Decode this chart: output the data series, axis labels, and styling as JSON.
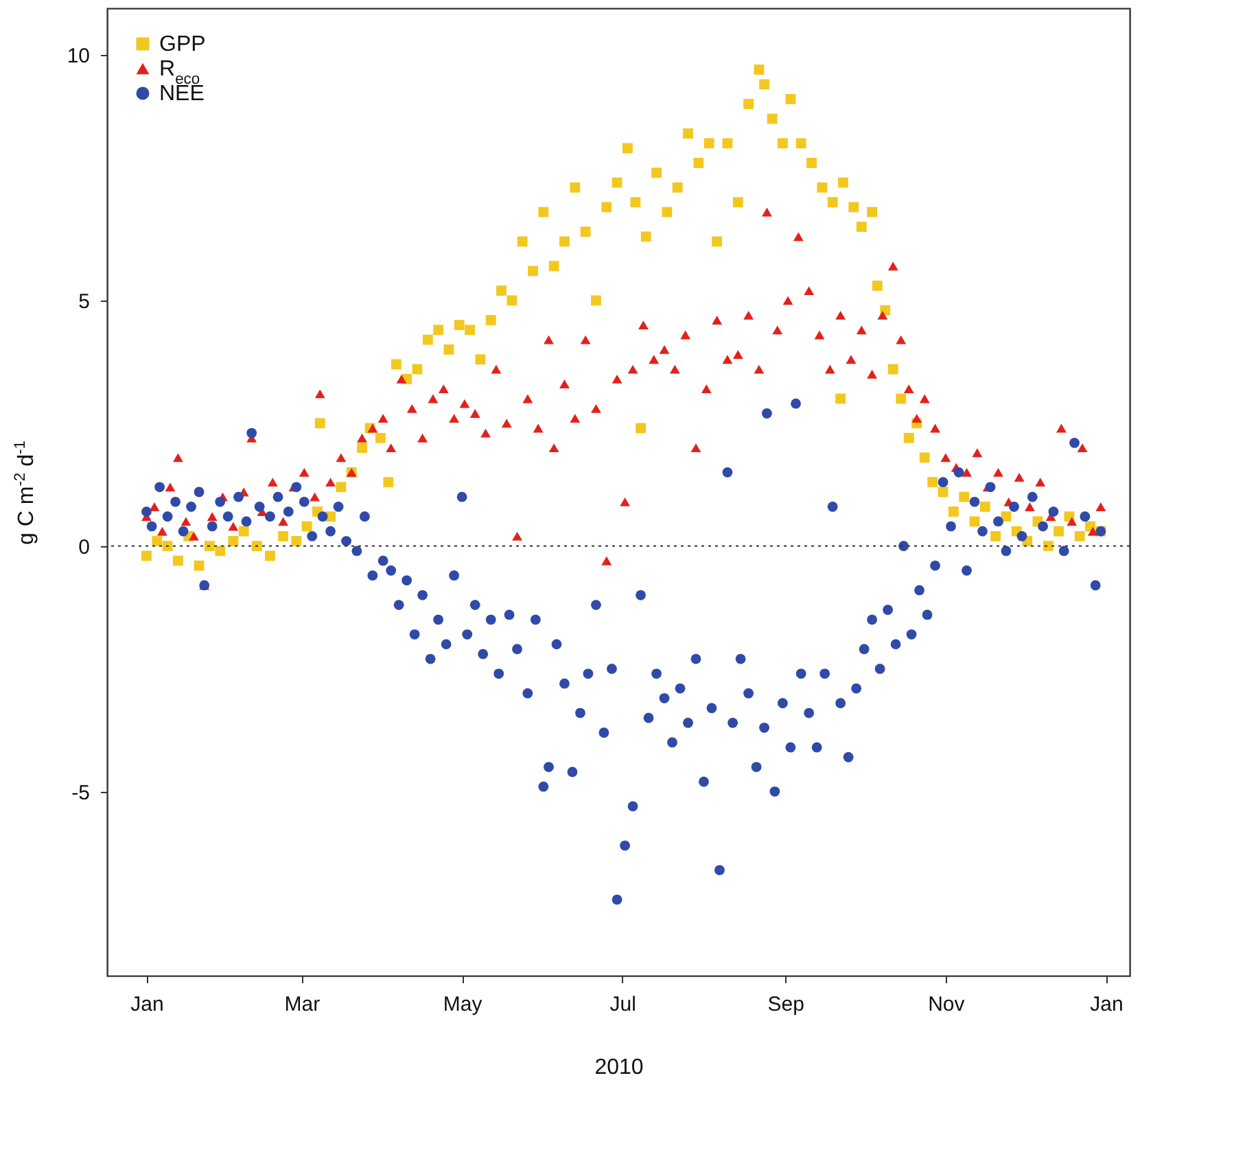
{
  "chart_data": {
    "type": "scatter",
    "xlabel": "2010",
    "ylabel": "g C m$^{-2}$ d$^{-1}$",
    "legend": "top left",
    "grid": false,
    "xlim": [
      "2009-12-17",
      "2011-01-10"
    ],
    "ylim": [
      -8.75,
      10.95
    ],
    "xticks": [
      {
        "value": "2010-01-01",
        "label": "Jan"
      },
      {
        "value": "2010-03-01",
        "label": "Mar"
      },
      {
        "value": "2010-05-01",
        "label": "May"
      },
      {
        "value": "2010-07-01",
        "label": "Jul"
      },
      {
        "value": "2010-09-01",
        "label": "Sep"
      },
      {
        "value": "2010-11-01",
        "label": "Nov"
      },
      {
        "value": "2011-01-01",
        "label": "Jan"
      }
    ],
    "yticks": [
      -5,
      0,
      5,
      10
    ],
    "ref_lines": [
      {
        "axis": "y",
        "value": 0,
        "line_style": "dotted",
        "color": "#333333"
      }
    ],
    "series": [
      {
        "name": "GPP",
        "color": "#f2c81e",
        "marker": "square",
        "x": [
          "2010-01-01",
          "2010-01-05",
          "2010-01-09",
          "2010-01-13",
          "2010-01-17",
          "2010-01-21",
          "2010-01-25",
          "2010-01-29",
          "2010-02-03",
          "2010-02-07",
          "2010-02-12",
          "2010-02-17",
          "2010-02-22",
          "2010-02-27",
          "2010-03-03",
          "2010-03-07",
          "2010-03-08",
          "2010-03-12",
          "2010-03-16",
          "2010-03-20",
          "2010-03-24",
          "2010-03-27",
          "2010-03-31",
          "2010-04-03",
          "2010-04-06",
          "2010-04-10",
          "2010-04-14",
          "2010-04-18",
          "2010-04-22",
          "2010-04-26",
          "2010-04-30",
          "2010-05-04",
          "2010-05-08",
          "2010-05-12",
          "2010-05-16",
          "2010-05-20",
          "2010-05-24",
          "2010-05-28",
          "2010-06-01",
          "2010-06-05",
          "2010-06-09",
          "2010-06-13",
          "2010-06-17",
          "2010-06-21",
          "2010-06-25",
          "2010-06-29",
          "2010-07-03",
          "2010-07-06",
          "2010-07-08",
          "2010-07-10",
          "2010-07-14",
          "2010-07-18",
          "2010-07-22",
          "2010-07-26",
          "2010-07-30",
          "2010-08-03",
          "2010-08-06",
          "2010-08-10",
          "2010-08-14",
          "2010-08-18",
          "2010-08-22",
          "2010-08-24",
          "2010-08-27",
          "2010-08-31",
          "2010-09-03",
          "2010-09-07",
          "2010-09-11",
          "2010-09-15",
          "2010-09-19",
          "2010-09-22",
          "2010-09-23",
          "2010-09-27",
          "2010-09-30",
          "2010-10-04",
          "2010-10-06",
          "2010-10-09",
          "2010-10-12",
          "2010-10-15",
          "2010-10-18",
          "2010-10-21",
          "2010-10-24",
          "2010-10-27",
          "2010-10-31",
          "2010-11-04",
          "2010-11-08",
          "2010-11-12",
          "2010-11-16",
          "2010-11-20",
          "2010-11-24",
          "2010-11-28",
          "2010-12-02",
          "2010-12-06",
          "2010-12-10",
          "2010-12-14",
          "2010-12-18",
          "2010-12-22",
          "2010-12-26",
          "2010-12-30"
        ],
        "values": [
          -0.2,
          0.1,
          0.0,
          -0.3,
          0.2,
          -0.4,
          0.0,
          -0.1,
          0.1,
          0.3,
          0.0,
          -0.2,
          0.2,
          0.1,
          0.4,
          0.7,
          2.5,
          0.6,
          1.2,
          1.5,
          2.0,
          2.4,
          2.2,
          1.3,
          3.7,
          3.4,
          3.6,
          4.2,
          4.4,
          4.0,
          4.5,
          4.4,
          3.8,
          4.6,
          5.2,
          5.0,
          6.2,
          5.6,
          6.8,
          5.7,
          6.2,
          7.3,
          6.4,
          5.0,
          6.9,
          7.4,
          8.1,
          7.0,
          2.4,
          6.3,
          7.6,
          6.8,
          7.3,
          8.4,
          7.8,
          8.2,
          6.2,
          8.2,
          7.0,
          9.0,
          9.7,
          9.4,
          8.7,
          8.2,
          9.1,
          8.2,
          7.8,
          7.3,
          7.0,
          3.0,
          7.4,
          6.9,
          6.5,
          6.8,
          5.3,
          4.8,
          3.6,
          3.0,
          2.2,
          2.5,
          1.8,
          1.3,
          1.1,
          0.7,
          1.0,
          0.5,
          0.8,
          0.2,
          0.6,
          0.3,
          0.1,
          0.5,
          0.0,
          0.3,
          0.6,
          0.2,
          0.4,
          0.3
        ]
      },
      {
        "name": "R$_{eco}$",
        "color": "#e3211c",
        "marker": "triangle",
        "x": [
          "2010-01-01",
          "2010-01-04",
          "2010-01-07",
          "2010-01-10",
          "2010-01-13",
          "2010-01-16",
          "2010-01-19",
          "2010-01-23",
          "2010-01-26",
          "2010-01-30",
          "2010-02-03",
          "2010-02-07",
          "2010-02-10",
          "2010-02-14",
          "2010-02-18",
          "2010-02-22",
          "2010-02-26",
          "2010-03-02",
          "2010-03-06",
          "2010-03-08",
          "2010-03-12",
          "2010-03-16",
          "2010-03-20",
          "2010-03-24",
          "2010-03-28",
          "2010-04-01",
          "2010-04-04",
          "2010-04-08",
          "2010-04-12",
          "2010-04-16",
          "2010-04-20",
          "2010-04-24",
          "2010-04-28",
          "2010-05-02",
          "2010-05-06",
          "2010-05-10",
          "2010-05-14",
          "2010-05-18",
          "2010-05-22",
          "2010-05-26",
          "2010-05-30",
          "2010-06-03",
          "2010-06-05",
          "2010-06-09",
          "2010-06-13",
          "2010-06-17",
          "2010-06-21",
          "2010-06-25",
          "2010-06-29",
          "2010-07-02",
          "2010-07-05",
          "2010-07-09",
          "2010-07-13",
          "2010-07-17",
          "2010-07-21",
          "2010-07-25",
          "2010-07-29",
          "2010-08-02",
          "2010-08-06",
          "2010-08-10",
          "2010-08-14",
          "2010-08-18",
          "2010-08-22",
          "2010-08-25",
          "2010-08-29",
          "2010-09-02",
          "2010-09-06",
          "2010-09-10",
          "2010-09-14",
          "2010-09-18",
          "2010-09-22",
          "2010-09-26",
          "2010-09-30",
          "2010-10-04",
          "2010-10-08",
          "2010-10-12",
          "2010-10-15",
          "2010-10-18",
          "2010-10-21",
          "2010-10-24",
          "2010-10-28",
          "2010-11-01",
          "2010-11-05",
          "2010-11-09",
          "2010-11-13",
          "2010-11-17",
          "2010-11-21",
          "2010-11-25",
          "2010-11-29",
          "2010-12-03",
          "2010-12-07",
          "2010-12-11",
          "2010-12-15",
          "2010-12-19",
          "2010-12-23",
          "2010-12-27",
          "2010-12-30"
        ],
        "values": [
          0.6,
          0.8,
          0.3,
          1.2,
          1.8,
          0.5,
          0.2,
          -0.8,
          0.6,
          1.0,
          0.4,
          1.1,
          2.2,
          0.7,
          1.3,
          0.5,
          1.2,
          1.5,
          1.0,
          3.1,
          1.3,
          1.8,
          1.5,
          2.2,
          2.4,
          2.6,
          2.0,
          3.4,
          2.8,
          2.2,
          3.0,
          3.2,
          2.6,
          2.9,
          2.7,
          2.3,
          3.6,
          2.5,
          0.2,
          3.0,
          2.4,
          4.2,
          2.0,
          3.3,
          2.6,
          4.2,
          2.8,
          -0.3,
          3.4,
          0.9,
          3.6,
          4.5,
          3.8,
          4.0,
          3.6,
          4.3,
          2.0,
          3.2,
          4.6,
          3.8,
          3.9,
          4.7,
          3.6,
          6.8,
          4.4,
          5.0,
          6.3,
          5.2,
          4.3,
          3.6,
          4.7,
          3.8,
          4.4,
          3.5,
          4.7,
          5.7,
          4.2,
          3.2,
          2.6,
          3.0,
          2.4,
          1.8,
          1.6,
          1.5,
          1.9,
          1.2,
          1.5,
          0.9,
          1.4,
          0.8,
          1.3,
          0.6,
          2.4,
          0.5,
          2.0,
          0.3,
          0.8
        ]
      },
      {
        "name": "NEE",
        "color": "#2f4aa8",
        "marker": "circle",
        "x": [
          "2010-01-01",
          "2010-01-03",
          "2010-01-06",
          "2010-01-09",
          "2010-01-12",
          "2010-01-15",
          "2010-01-18",
          "2010-01-21",
          "2010-01-23",
          "2010-01-26",
          "2010-01-29",
          "2010-02-01",
          "2010-02-05",
          "2010-02-08",
          "2010-02-10",
          "2010-02-13",
          "2010-02-17",
          "2010-02-20",
          "2010-02-24",
          "2010-02-27",
          "2010-03-02",
          "2010-03-05",
          "2010-03-09",
          "2010-03-12",
          "2010-03-15",
          "2010-03-18",
          "2010-03-22",
          "2010-03-25",
          "2010-03-28",
          "2010-04-01",
          "2010-04-04",
          "2010-04-07",
          "2010-04-10",
          "2010-04-13",
          "2010-04-16",
          "2010-04-19",
          "2010-04-22",
          "2010-04-25",
          "2010-04-28",
          "2010-05-01",
          "2010-05-03",
          "2010-05-06",
          "2010-05-09",
          "2010-05-12",
          "2010-05-15",
          "2010-05-19",
          "2010-05-22",
          "2010-05-26",
          "2010-05-29",
          "2010-06-01",
          "2010-06-03",
          "2010-06-06",
          "2010-06-09",
          "2010-06-12",
          "2010-06-15",
          "2010-06-18",
          "2010-06-21",
          "2010-06-24",
          "2010-06-27",
          "2010-06-29",
          "2010-07-02",
          "2010-07-05",
          "2010-07-08",
          "2010-07-11",
          "2010-07-14",
          "2010-07-17",
          "2010-07-20",
          "2010-07-23",
          "2010-07-26",
          "2010-07-29",
          "2010-08-01",
          "2010-08-04",
          "2010-08-07",
          "2010-08-10",
          "2010-08-12",
          "2010-08-15",
          "2010-08-18",
          "2010-08-21",
          "2010-08-24",
          "2010-08-25",
          "2010-08-28",
          "2010-08-31",
          "2010-09-03",
          "2010-09-05",
          "2010-09-07",
          "2010-09-10",
          "2010-09-13",
          "2010-09-16",
          "2010-09-19",
          "2010-09-22",
          "2010-09-25",
          "2010-09-28",
          "2010-10-01",
          "2010-10-04",
          "2010-10-07",
          "2010-10-10",
          "2010-10-13",
          "2010-10-16",
          "2010-10-19",
          "2010-10-22",
          "2010-10-25",
          "2010-10-28",
          "2010-10-31",
          "2010-11-03",
          "2010-11-06",
          "2010-11-09",
          "2010-11-12",
          "2010-11-15",
          "2010-11-18",
          "2010-11-21",
          "2010-11-24",
          "2010-11-27",
          "2010-11-30",
          "2010-12-04",
          "2010-12-08",
          "2010-12-12",
          "2010-12-16",
          "2010-12-20",
          "2010-12-24",
          "2010-12-28",
          "2010-12-30"
        ],
        "values": [
          0.7,
          0.4,
          1.2,
          0.6,
          0.9,
          0.3,
          0.8,
          1.1,
          -0.8,
          0.4,
          0.9,
          0.6,
          1.0,
          0.5,
          2.3,
          0.8,
          0.6,
          1.0,
          0.7,
          1.2,
          0.9,
          0.2,
          0.6,
          0.3,
          0.8,
          0.1,
          -0.1,
          0.6,
          -0.6,
          -0.3,
          -0.5,
          -1.2,
          -0.7,
          -1.8,
          -1.0,
          -2.3,
          -1.5,
          -2.0,
          -0.6,
          1.0,
          -1.8,
          -1.2,
          -2.2,
          -1.5,
          -2.6,
          -1.4,
          -2.1,
          -3.0,
          -1.5,
          -4.9,
          -4.5,
          -2.0,
          -2.8,
          -4.6,
          -3.4,
          -2.6,
          -1.2,
          -3.8,
          -2.5,
          -7.2,
          -6.1,
          -5.3,
          -1.0,
          -3.5,
          -2.6,
          -3.1,
          -4.0,
          -2.9,
          -3.6,
          -2.3,
          -4.8,
          -3.3,
          -6.6,
          1.5,
          -3.6,
          -2.3,
          -3.0,
          -4.5,
          -3.7,
          2.7,
          -5.0,
          -3.2,
          -4.1,
          2.9,
          -2.6,
          -3.4,
          -4.1,
          -2.6,
          0.8,
          -3.2,
          -4.3,
          -2.9,
          -2.1,
          -1.5,
          -2.5,
          -1.3,
          -2.0,
          0.0,
          -1.8,
          -0.9,
          -1.4,
          -0.4,
          1.3,
          0.4,
          1.5,
          -0.5,
          0.9,
          0.3,
          1.2,
          0.5,
          -0.1,
          0.8,
          0.2,
          1.0,
          0.4,
          0.7,
          -0.1,
          2.1,
          0.6,
          -0.8,
          0.3
        ]
      }
    ]
  }
}
